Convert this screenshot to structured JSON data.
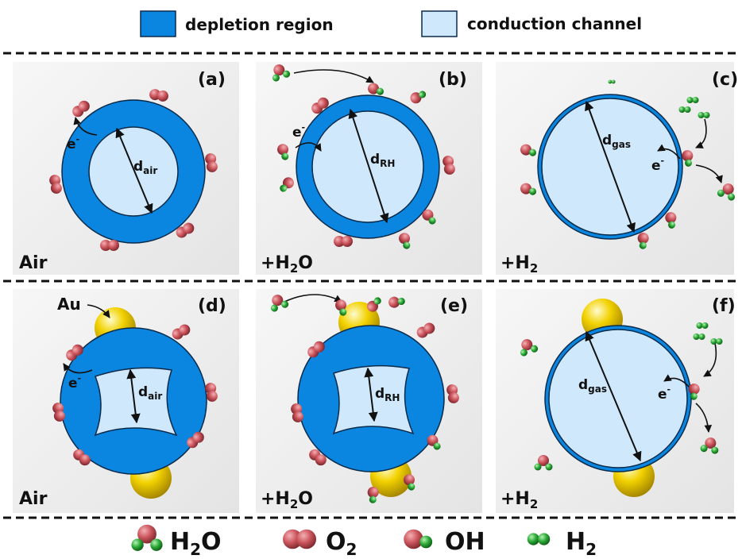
{
  "legend_top": {
    "depletion": {
      "label": "depletion region",
      "color": "#0a86e0"
    },
    "conduction": {
      "label": "conduction channel",
      "color": "#cfe8fb"
    }
  },
  "colors": {
    "depletion": "#0a86e0",
    "conduction": "#cfe8fb",
    "oxygen_atom": "#c9525a",
    "hydrogen_atom": "#2aa835",
    "gold": "#f2d200"
  },
  "panels": [
    {
      "id": "a",
      "tag": "(a)",
      "env": "Air",
      "env_sub": "",
      "env_tail": "",
      "dim_main": "d",
      "dim_sub": "air",
      "electron": "e",
      "electron_sup": "-"
    },
    {
      "id": "b",
      "tag": "(b)",
      "env": "+H",
      "env_sub": "2",
      "env_tail": "O",
      "dim_main": "d",
      "dim_sub": "RH",
      "electron": "e",
      "electron_sup": "-"
    },
    {
      "id": "c",
      "tag": "(c)",
      "env": "+H",
      "env_sub": "2",
      "env_tail": "",
      "dim_main": "d",
      "dim_sub": "gas",
      "electron": "e",
      "electron_sup": "-"
    },
    {
      "id": "d",
      "tag": "(d)",
      "env": "Air",
      "env_sub": "",
      "env_tail": "",
      "dim_main": "d",
      "dim_sub": "air",
      "electron": "e",
      "electron_sup": "-",
      "gold_label": "Au"
    },
    {
      "id": "e",
      "tag": "(e)",
      "env": "+H",
      "env_sub": "2",
      "env_tail": "O",
      "dim_main": "d",
      "dim_sub": "RH"
    },
    {
      "id": "f",
      "tag": "(f)",
      "env": "+H",
      "env_sub": "2",
      "env_tail": "",
      "dim_main": "d",
      "dim_sub": "gas",
      "electron": "e",
      "electron_sup": "-"
    }
  ],
  "legend_bottom": {
    "h2o": {
      "main": "H",
      "sub": "2",
      "tail": "O",
      "icon": "water-molecule-icon"
    },
    "o2": {
      "main": "O",
      "sub": "2",
      "tail": "",
      "icon": "oxygen-molecule-icon"
    },
    "oh": {
      "main": "OH",
      "sub": "",
      "tail": "",
      "icon": "hydroxyl-icon"
    },
    "h2": {
      "main": "H",
      "sub": "2",
      "tail": "",
      "icon": "hydrogen-molecule-icon"
    }
  }
}
